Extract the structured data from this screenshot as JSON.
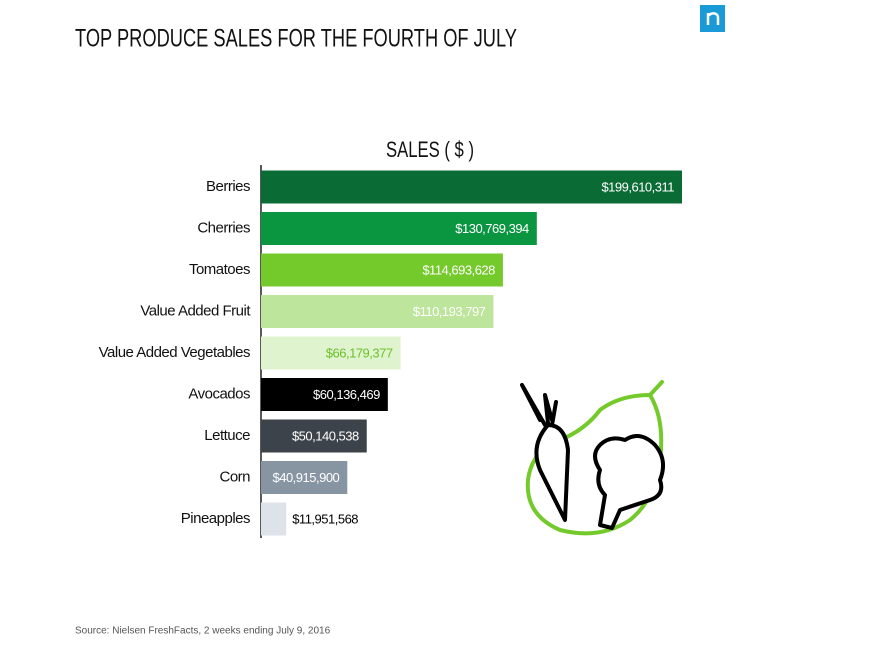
{
  "chart_data": {
    "type": "hbar",
    "title": "TOP PRODUCE SALES FOR THE FOURTH OF JULY",
    "axis_title": "SALES ( $ )",
    "source": "Source: Nielsen FreshFacts, 2 weeks ending July 9, 2016",
    "categories": [
      "Berries",
      "Cherries",
      "Tomatoes",
      "Value Added Fruit",
      "Value Added Vegetables",
      "Avocados",
      "Lettuce",
      "Corn",
      "Pineapples"
    ],
    "values": [
      199610311,
      130769394,
      114693628,
      110193797,
      66179377,
      60136469,
      50140538,
      40915900,
      11951568
    ],
    "value_labels": [
      "$199,610,311",
      "$130,769,394",
      "$114,693,628",
      "$110,193,797",
      "$66,179,377",
      "$60,136,469",
      "$50,140,538",
      "$40,915,900",
      "$11,951,568"
    ],
    "colors": [
      "#0b6b35",
      "#0a9640",
      "#74c92b",
      "#bde59b",
      "#e0f3cf",
      "#000000",
      "#3d434a",
      "#8795a3",
      "#dde3e8"
    ],
    "label_colors": [
      "#ffffff",
      "#ffffff",
      "#ffffff",
      "#ffffff",
      "#6cc02a",
      "#ffffff",
      "#ffffff",
      "#ffffff",
      "#000000"
    ]
  }
}
